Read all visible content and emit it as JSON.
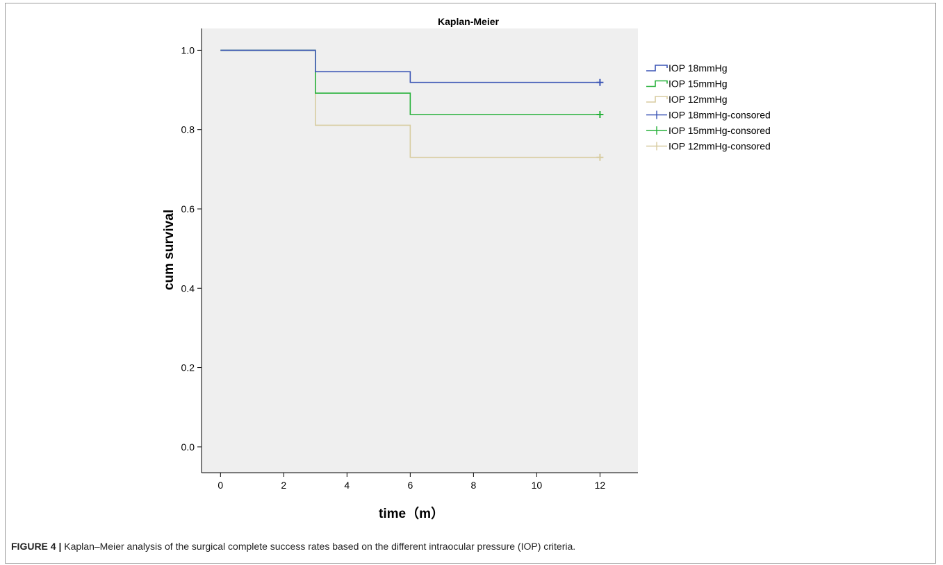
{
  "chart_data": {
    "type": "line",
    "step": true,
    "title": "Kaplan-Meier",
    "xlabel": "time（m）",
    "ylabel": "cum survival",
    "xlim": [
      -0.6,
      13.2
    ],
    "ylim": [
      -0.065,
      1.055
    ],
    "xticks": [
      0,
      2,
      4,
      6,
      8,
      10,
      12
    ],
    "yticks": [
      0.0,
      0.2,
      0.4,
      0.6,
      0.8,
      1.0
    ],
    "xtick_labels": [
      "0",
      "2",
      "4",
      "6",
      "8",
      "10",
      "12"
    ],
    "ytick_labels": [
      "0.0",
      "0.2",
      "0.4",
      "0.6",
      "0.8",
      "1.0"
    ],
    "grid": false,
    "legend_position": "right",
    "plot_background": "#efefef",
    "series": [
      {
        "name": "IOP 18mmHg",
        "color": "#3b55b5",
        "x": [
          0,
          3,
          6,
          12
        ],
        "y": [
          1.0,
          0.946,
          0.919,
          0.919
        ]
      },
      {
        "name": "IOP 15mmHg",
        "color": "#27b13a",
        "x": [
          0,
          3,
          6,
          12
        ],
        "y": [
          1.0,
          0.892,
          0.838,
          0.838
        ]
      },
      {
        "name": "IOP 12mmHg",
        "color": "#d8cca0",
        "x": [
          0,
          3,
          6,
          12
        ],
        "y": [
          1.0,
          0.811,
          0.73,
          0.73
        ]
      }
    ],
    "censored": [
      {
        "name": "IOP 18mmHg-consored",
        "color": "#3b55b5",
        "x": [
          12
        ],
        "y": [
          0.919
        ]
      },
      {
        "name": "IOP 15mmHg-consored",
        "color": "#27b13a",
        "x": [
          12
        ],
        "y": [
          0.838
        ]
      },
      {
        "name": "IOP 12mmHg-consored",
        "color": "#d8cca0",
        "x": [
          12
        ],
        "y": [
          0.73
        ]
      }
    ]
  },
  "caption": {
    "label": "FIGURE 4 |",
    "text": " Kaplan–Meier analysis of the surgical complete success rates based on the different intraocular pressure (IOP) criteria."
  }
}
